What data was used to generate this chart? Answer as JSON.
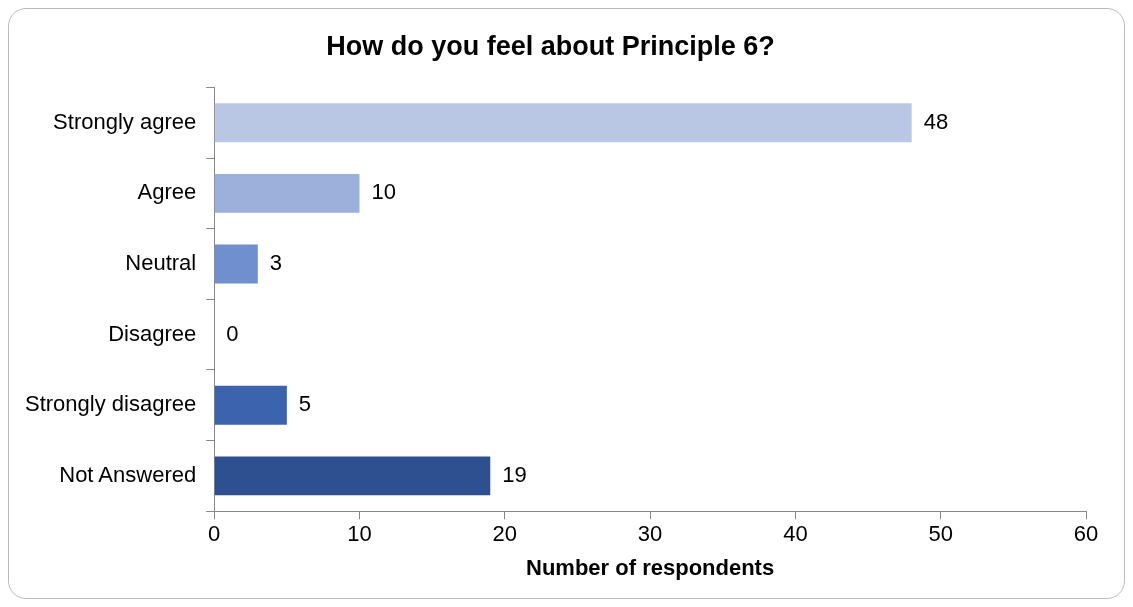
{
  "chart_data": {
    "type": "bar",
    "orientation": "horizontal",
    "title": "How do you feel about Principle 6?",
    "xlabel": "Number of respondents",
    "categories": [
      "Strongly agree",
      "Agree",
      "Neutral",
      "Disagree",
      "Strongly disagree",
      "Not Answered"
    ],
    "values": [
      48,
      10,
      3,
      0,
      5,
      19
    ],
    "colors": [
      "#b9c6e4",
      "#9dafdb",
      "#6f8fce",
      "#4f74c0",
      "#3b63ae",
      "#2f5090"
    ],
    "xlim": [
      0,
      60
    ],
    "xticks": [
      0,
      10,
      20,
      30,
      40,
      50,
      60
    ],
    "grid": false,
    "legend": false,
    "data_labels": true
  }
}
